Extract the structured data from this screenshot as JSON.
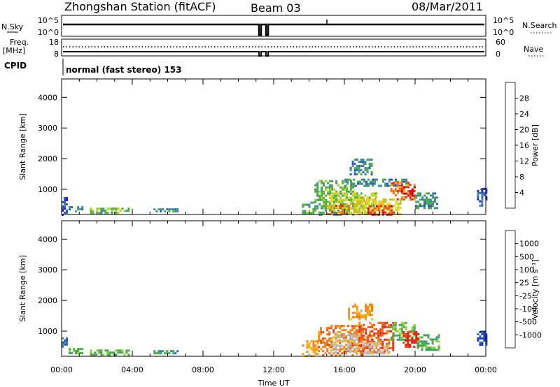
{
  "header": {
    "station": "Zhongshan Station (fitACF)",
    "beam": "Beam 03",
    "date": "08/Mar/2011"
  },
  "status": {
    "nsky_label": "N.Sky",
    "nsearch_label": "N.Search",
    "freq_label": "Freq.",
    "freq_unit": "[MHz]",
    "nave_label": "Nave",
    "cpid_label": "CPID",
    "cpid_text": "normal (fast stereo) 153",
    "noise_left_ticks": [
      "10^5",
      "10^0"
    ],
    "noise_right_ticks": [
      "10^5",
      "10^0"
    ],
    "freq_left_ticks": [
      "18",
      "8"
    ],
    "freq_right_ticks": [
      "60",
      "0"
    ]
  },
  "chart_data": [
    {
      "type": "heatmap",
      "id": "power",
      "ylabel": "Slant Range [km]",
      "xlabel": "",
      "x_range_hours": [
        0,
        24
      ],
      "ylim": [
        180,
        4600
      ],
      "y_ticks": [
        1000,
        2000,
        3000,
        4000
      ],
      "colorbar": {
        "label": "Power [dB]",
        "ticks": [
          "4",
          "8",
          "12",
          "16",
          "20",
          "24",
          "28"
        ],
        "colors": [
          "#1e1ee6",
          "#2d5cc8",
          "#3f8f8a",
          "#4fae3a",
          "#a6d22a",
          "#e8d21a",
          "#f5a21a",
          "#f56a14",
          "#e82a10",
          "#cc0000"
        ]
      },
      "patches": [
        {
          "t0": 0.0,
          "t1": 0.35,
          "r0": 200,
          "r1": 750,
          "level": 1
        },
        {
          "t0": 0.4,
          "t1": 1.2,
          "r0": 250,
          "r1": 450,
          "level": 2
        },
        {
          "t0": 1.6,
          "t1": 3.8,
          "r0": 260,
          "r1": 400,
          "level": 3
        },
        {
          "t0": 5.2,
          "t1": 6.6,
          "r0": 260,
          "r1": 380,
          "level": 2
        },
        {
          "t0": 13.6,
          "t1": 14.3,
          "r0": 200,
          "r1": 600,
          "level": 3
        },
        {
          "t0": 14.3,
          "t1": 16.5,
          "r0": 200,
          "r1": 1300,
          "level": 3
        },
        {
          "t0": 15.0,
          "t1": 17.8,
          "r0": 350,
          "r1": 900,
          "level": 4
        },
        {
          "t0": 15.0,
          "t1": 16.3,
          "r0": 200,
          "r1": 500,
          "level": 7
        },
        {
          "t0": 16.5,
          "t1": 19.2,
          "r0": 200,
          "r1": 700,
          "level": 5
        },
        {
          "t0": 17.3,
          "t1": 18.8,
          "r0": 200,
          "r1": 480,
          "level": 8
        },
        {
          "t0": 16.0,
          "t1": 19.5,
          "r0": 1100,
          "r1": 1350,
          "level": 2
        },
        {
          "t0": 18.6,
          "t1": 20.0,
          "r0": 700,
          "r1": 1250,
          "level": 7
        },
        {
          "t0": 19.2,
          "t1": 20.0,
          "r0": 800,
          "r1": 1100,
          "level": 9
        },
        {
          "t0": 20.0,
          "t1": 21.3,
          "r0": 400,
          "r1": 900,
          "level": 2
        },
        {
          "t0": 16.3,
          "t1": 17.5,
          "r0": 1500,
          "r1": 2000,
          "level": 2
        },
        {
          "t0": 23.5,
          "t1": 24.0,
          "r0": 500,
          "r1": 1050,
          "level": 1
        }
      ]
    },
    {
      "type": "heatmap",
      "id": "velocity",
      "ylabel": "Slant Range [km]",
      "xlabel": "Time UT",
      "x_range_hours": [
        0,
        24
      ],
      "ylim": [
        180,
        4600
      ],
      "y_ticks": [
        1000,
        2000,
        3000,
        4000
      ],
      "x_ticks": [
        "00:00",
        "04:00",
        "08:00",
        "12:00",
        "16:00",
        "20:00",
        "00:00"
      ],
      "colorbar": {
        "label": "Velocity [m s⁻¹]",
        "ticks": [
          "1000",
          "500",
          "100",
          "25",
          "-25",
          "-100",
          "-500",
          "-1000"
        ],
        "colors": [
          "#1e3ec8",
          "#2f6fb8",
          "#3e9a7a",
          "#4aa84a",
          "#8ed23a",
          "#c8c8c8",
          "#b4b4b4",
          "#f5c21a",
          "#f5a01a",
          "#f57a14",
          "#ee4a10",
          "#e82010"
        ]
      },
      "patches": [
        {
          "t0": 0.0,
          "t1": 0.35,
          "r0": 500,
          "r1": 800,
          "level": 1
        },
        {
          "t0": 0.4,
          "t1": 1.2,
          "r0": 250,
          "r1": 450,
          "level": 3
        },
        {
          "t0": 1.6,
          "t1": 3.8,
          "r0": 260,
          "r1": 400,
          "level": 3
        },
        {
          "t0": 5.2,
          "t1": 6.6,
          "r0": 260,
          "r1": 380,
          "level": 2
        },
        {
          "t0": 13.6,
          "t1": 14.5,
          "r0": 200,
          "r1": 700,
          "level": 8
        },
        {
          "t0": 14.5,
          "t1": 17.0,
          "r0": 200,
          "r1": 1200,
          "level": 9
        },
        {
          "t0": 15.2,
          "t1": 17.6,
          "r0": 300,
          "r1": 900,
          "level": 6
        },
        {
          "t0": 16.8,
          "t1": 18.8,
          "r0": 300,
          "r1": 1300,
          "level": 10
        },
        {
          "t0": 17.0,
          "t1": 18.5,
          "r0": 250,
          "r1": 650,
          "level": 6
        },
        {
          "t0": 18.6,
          "t1": 20.0,
          "r0": 700,
          "r1": 1300,
          "level": 3
        },
        {
          "t0": 19.3,
          "t1": 20.2,
          "r0": 500,
          "r1": 1000,
          "level": 11
        },
        {
          "t0": 20.1,
          "t1": 21.3,
          "r0": 400,
          "r1": 900,
          "level": 3
        },
        {
          "t0": 16.2,
          "t1": 17.6,
          "r0": 1400,
          "r1": 1900,
          "level": 8
        },
        {
          "t0": 23.5,
          "t1": 24.0,
          "r0": 550,
          "r1": 1000,
          "level": 0
        }
      ]
    }
  ]
}
